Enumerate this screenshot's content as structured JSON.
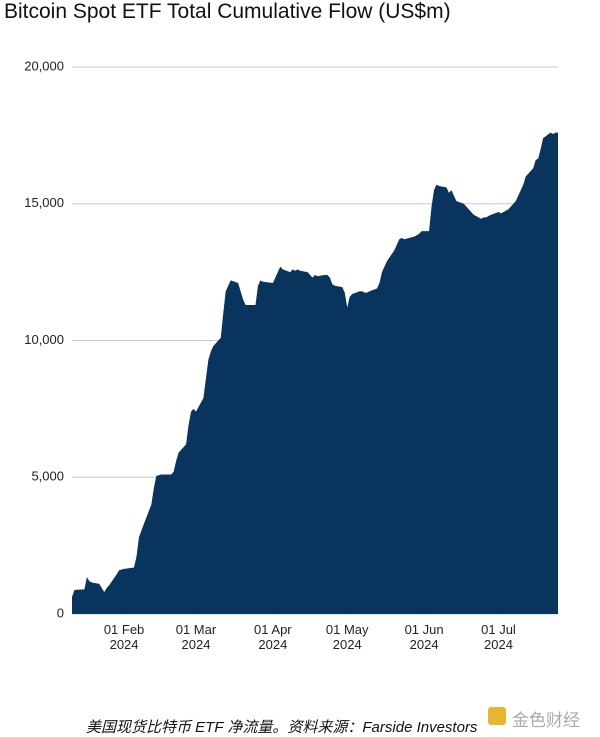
{
  "chart_data": {
    "type": "area",
    "title": "Bitcoin Spot ETF Total Cumulative Flow (US$m)",
    "note": "美国现货比特币 ETF 净流量。资料来源：Farside Investors",
    "watermark": "金色财经",
    "color": "#08345e",
    "grid": true,
    "xlim": [
      "2024-01-11",
      "2024-07-25"
    ],
    "xticks": [
      {
        "value": "2024-02-01",
        "label": "01 Feb 2024"
      },
      {
        "value": "2024-03-01",
        "label": "01 Mar 2024"
      },
      {
        "value": "2024-04-01",
        "label": "01 Apr 2024"
      },
      {
        "value": "2024-05-01",
        "label": "01 May 2024"
      },
      {
        "value": "2024-06-01",
        "label": "01 Jun 2024"
      },
      {
        "value": "2024-07-01",
        "label": "01 Jul 2024"
      }
    ],
    "ylim": [
      0,
      20000
    ],
    "yticks": [
      0,
      {
        "value": 5000,
        "label": "5,000"
      },
      {
        "value": 10000,
        "label": "10,000"
      },
      {
        "value": 15000,
        "label": "15,000"
      },
      {
        "value": 20000,
        "label": "20,000"
      }
    ],
    "x": [
      "2024-01-11",
      "2024-01-12",
      "2024-01-16",
      "2024-01-17",
      "2024-01-18",
      "2024-01-19",
      "2024-01-22",
      "2024-01-23",
      "2024-01-24",
      "2024-01-25",
      "2024-01-26",
      "2024-01-29",
      "2024-01-30",
      "2024-02-01",
      "2024-02-05",
      "2024-02-06",
      "2024-02-07",
      "2024-02-09",
      "2024-02-12",
      "2024-02-13",
      "2024-02-14",
      "2024-02-16",
      "2024-02-20",
      "2024-02-21",
      "2024-02-22",
      "2024-02-23",
      "2024-02-26",
      "2024-02-27",
      "2024-02-28",
      "2024-02-29",
      "2024-03-01",
      "2024-03-04",
      "2024-03-05",
      "2024-03-06",
      "2024-03-07",
      "2024-03-08",
      "2024-03-11",
      "2024-03-12",
      "2024-03-13",
      "2024-03-14",
      "2024-03-15",
      "2024-03-18",
      "2024-03-19",
      "2024-03-20",
      "2024-03-21",
      "2024-03-22",
      "2024-03-25",
      "2024-03-26",
      "2024-03-27",
      "2024-03-28",
      "2024-04-01",
      "2024-04-02",
      "2024-04-04",
      "2024-04-05",
      "2024-04-08",
      "2024-04-09",
      "2024-04-10",
      "2024-04-11",
      "2024-04-12",
      "2024-04-15",
      "2024-04-16",
      "2024-04-17",
      "2024-04-18",
      "2024-04-19",
      "2024-04-22",
      "2024-04-23",
      "2024-04-24",
      "2024-04-25",
      "2024-04-26",
      "2024-04-29",
      "2024-04-30",
      "2024-05-01",
      "2024-05-02",
      "2024-05-03",
      "2024-05-06",
      "2024-05-07",
      "2024-05-08",
      "2024-05-09",
      "2024-05-10",
      "2024-05-13",
      "2024-05-14",
      "2024-05-15",
      "2024-05-16",
      "2024-05-17",
      "2024-05-20",
      "2024-05-21",
      "2024-05-22",
      "2024-05-23",
      "2024-05-24",
      "2024-05-28",
      "2024-05-29",
      "2024-05-30",
      "2024-05-31",
      "2024-06-03",
      "2024-06-04",
      "2024-06-05",
      "2024-06-06",
      "2024-06-07",
      "2024-06-10",
      "2024-06-11",
      "2024-06-12",
      "2024-06-13",
      "2024-06-14",
      "2024-06-17",
      "2024-06-18",
      "2024-06-20",
      "2024-06-21",
      "2024-06-24",
      "2024-06-25",
      "2024-06-26",
      "2024-06-27",
      "2024-06-28",
      "2024-07-01",
      "2024-07-02",
      "2024-07-03",
      "2024-07-05",
      "2024-07-08",
      "2024-07-09",
      "2024-07-10",
      "2024-07-11",
      "2024-07-12",
      "2024-07-15",
      "2024-07-16",
      "2024-07-17",
      "2024-07-18",
      "2024-07-19",
      "2024-07-22",
      "2024-07-23",
      "2024-07-24",
      "2024-07-25"
    ],
    "values": [
      620,
      880,
      900,
      1350,
      1200,
      1150,
      1100,
      950,
      800,
      950,
      1050,
      1450,
      1600,
      1650,
      1700,
      2100,
      2800,
      3300,
      4000,
      4600,
      5050,
      5100,
      5100,
      5200,
      5600,
      5900,
      6200,
      6900,
      7400,
      7500,
      7400,
      7900,
      8600,
      9300,
      9600,
      9800,
      10100,
      11000,
      11800,
      12000,
      12200,
      12100,
      11800,
      11500,
      11300,
      11300,
      11300,
      12000,
      12200,
      12150,
      12100,
      12300,
      12700,
      12600,
      12500,
      12600,
      12550,
      12600,
      12550,
      12500,
      12400,
      12300,
      12400,
      12350,
      12400,
      12400,
      12300,
      12050,
      12000,
      11950,
      11750,
      11200,
      11600,
      11700,
      11800,
      11800,
      11750,
      11750,
      11800,
      11900,
      12100,
      12500,
      12700,
      12900,
      13300,
      13500,
      13700,
      13750,
      13700,
      13800,
      13850,
      13900,
      14000,
      14000,
      14900,
      15500,
      15700,
      15650,
      15600,
      15400,
      15500,
      15300,
      15100,
      15000,
      14900,
      14700,
      14600,
      14450,
      14500,
      14500,
      14550,
      14600,
      14700,
      14650,
      14700,
      14800,
      15100,
      15300,
      15500,
      15700,
      16000,
      16300,
      16600,
      16650,
      17000,
      17400,
      17600,
      17550,
      17600,
      17600
    ]
  }
}
